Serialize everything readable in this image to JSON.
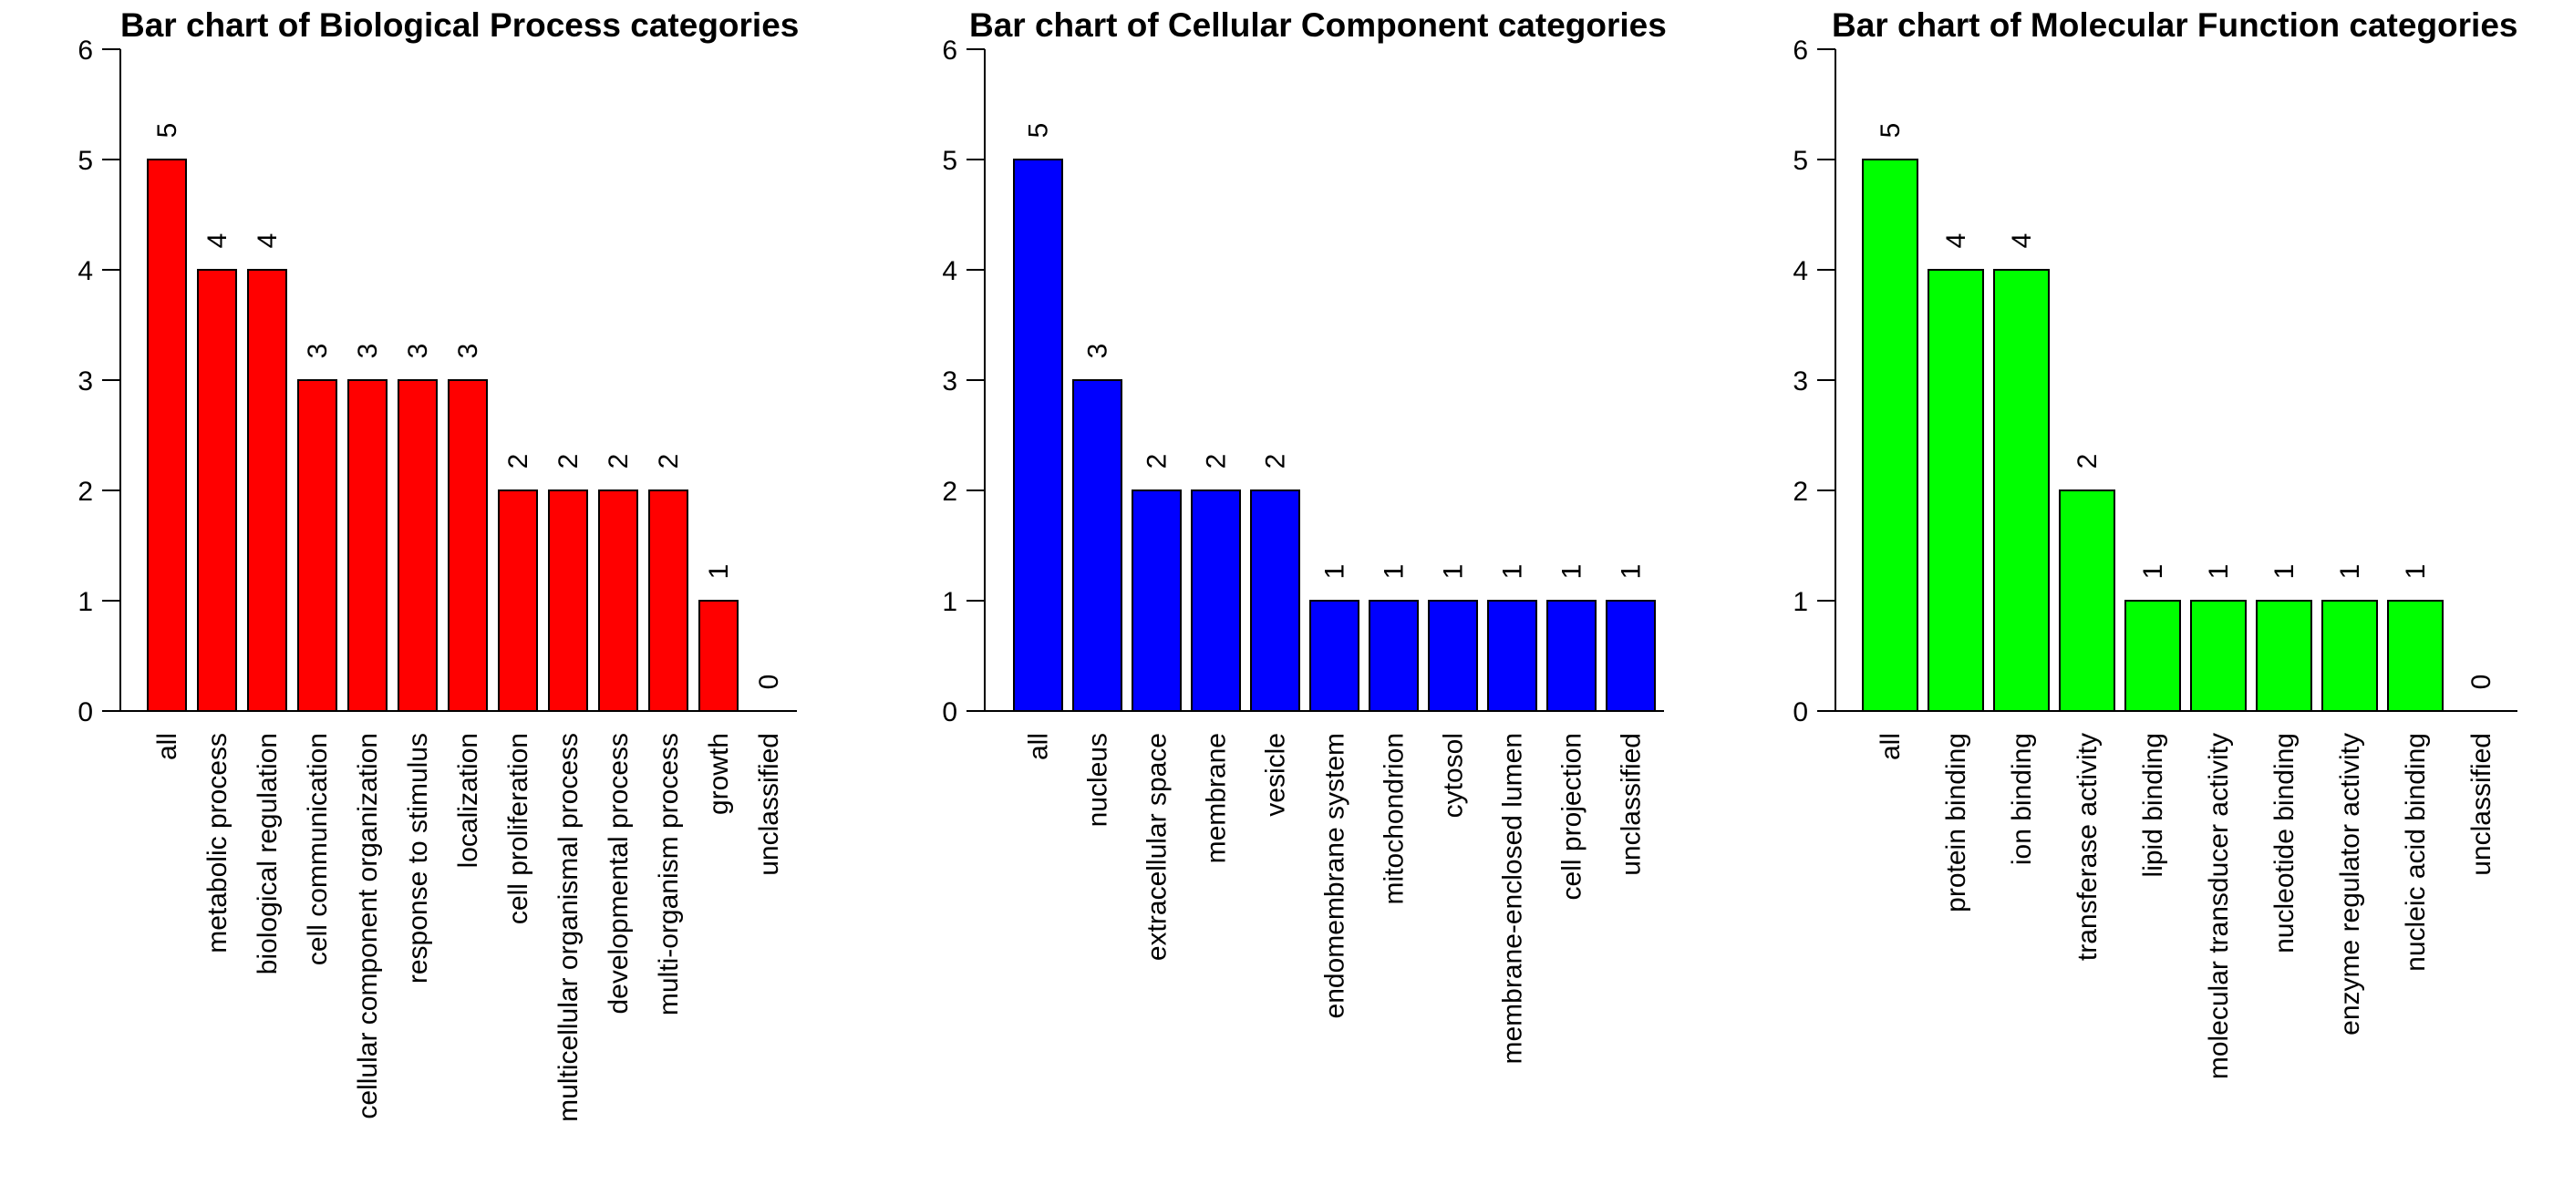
{
  "chart_data": [
    {
      "type": "bar",
      "title": "Bar chart of Biological Process categories",
      "categories": [
        "all",
        "metabolic process",
        "biological regulation",
        "cell communication",
        "cellular component organization",
        "response to stimulus",
        "localization",
        "cell proliferation",
        "multicellular organismal process",
        "developmental process",
        "multi-organism process",
        "growth",
        "unclassified"
      ],
      "values": [
        5,
        4,
        4,
        3,
        3,
        3,
        3,
        2,
        2,
        2,
        2,
        1,
        0
      ],
      "ylim": [
        0,
        6
      ],
      "yticks": [
        0,
        1,
        2,
        3,
        4,
        5,
        6
      ],
      "color": "#ff0000",
      "grid": false
    },
    {
      "type": "bar",
      "title": "Bar chart of Cellular Component categories",
      "categories": [
        "all",
        "nucleus",
        "extracellular space",
        "membrane",
        "vesicle",
        "endomembrane system",
        "mitochondrion",
        "cytosol",
        "membrane-enclosed lumen",
        "cell projection",
        "unclassified"
      ],
      "values": [
        5,
        3,
        2,
        2,
        2,
        1,
        1,
        1,
        1,
        1,
        1
      ],
      "ylim": [
        0,
        6
      ],
      "yticks": [
        0,
        1,
        2,
        3,
        4,
        5,
        6
      ],
      "color": "#0000ff",
      "grid": false
    },
    {
      "type": "bar",
      "title": "Bar chart of Molecular Function categories",
      "categories": [
        "all",
        "protein binding",
        "ion binding",
        "transferase activity",
        "lipid binding",
        "molecular transducer activity",
        "nucleotide binding",
        "enzyme regulator activity",
        "nucleic acid binding",
        "unclassified"
      ],
      "values": [
        5,
        4,
        4,
        2,
        1,
        1,
        1,
        1,
        1,
        0
      ],
      "ylim": [
        0,
        6
      ],
      "yticks": [
        0,
        1,
        2,
        3,
        4,
        5,
        6
      ],
      "color": "#00ff00",
      "grid": false
    }
  ]
}
